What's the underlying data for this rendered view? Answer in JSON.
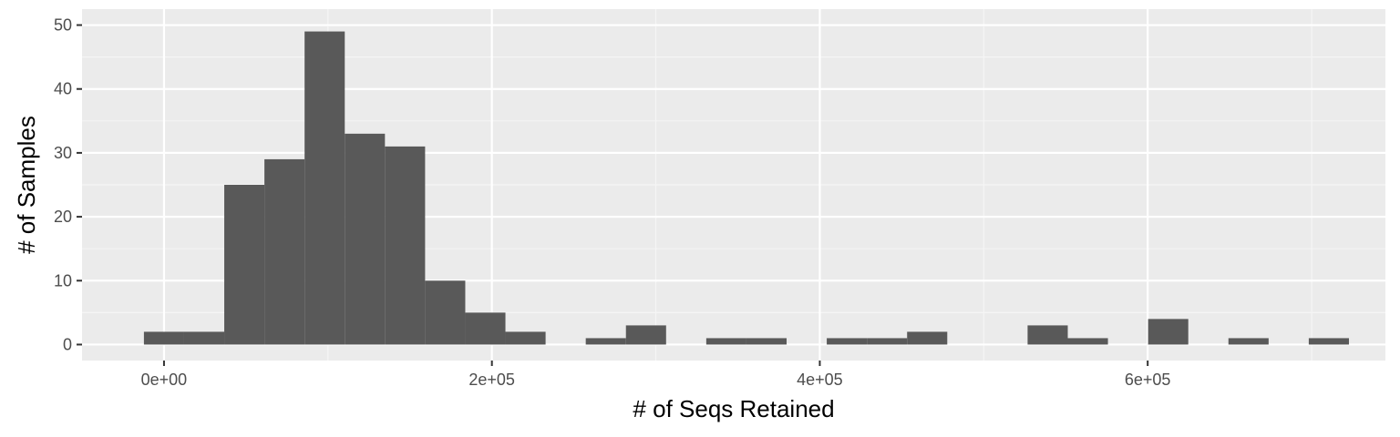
{
  "chart_data": {
    "type": "bar",
    "subtype": "histogram",
    "title": "",
    "xlabel": "# of Seqs Retained",
    "ylabel": "# of Samples",
    "x_tick_values": [
      0,
      200000,
      400000,
      600000
    ],
    "x_tick_labels": [
      "0e+00",
      "2e+05",
      "4e+05",
      "6e+05"
    ],
    "y_tick_values": [
      0,
      10,
      20,
      30,
      40,
      50
    ],
    "y_tick_labels": [
      "0",
      "10",
      "20",
      "30",
      "40",
      "50"
    ],
    "xlim": [
      -50000,
      745000
    ],
    "ylim": [
      -2.5,
      52.5
    ],
    "bin_width": 24500,
    "bins": [
      {
        "x0": -12250,
        "x1": 12250,
        "count": 2
      },
      {
        "x0": 12250,
        "x1": 36750,
        "count": 2
      },
      {
        "x0": 36750,
        "x1": 61250,
        "count": 25
      },
      {
        "x0": 61250,
        "x1": 85750,
        "count": 29
      },
      {
        "x0": 85750,
        "x1": 110250,
        "count": 49
      },
      {
        "x0": 110250,
        "x1": 134750,
        "count": 33
      },
      {
        "x0": 134750,
        "x1": 159250,
        "count": 31
      },
      {
        "x0": 159250,
        "x1": 183750,
        "count": 10
      },
      {
        "x0": 183750,
        "x1": 208250,
        "count": 5
      },
      {
        "x0": 208250,
        "x1": 232750,
        "count": 2
      },
      {
        "x0": 232750,
        "x1": 257250,
        "count": 0
      },
      {
        "x0": 257250,
        "x1": 281750,
        "count": 1
      },
      {
        "x0": 281750,
        "x1": 306250,
        "count": 3
      },
      {
        "x0": 306250,
        "x1": 330750,
        "count": 0
      },
      {
        "x0": 330750,
        "x1": 355250,
        "count": 1
      },
      {
        "x0": 355250,
        "x1": 379750,
        "count": 1
      },
      {
        "x0": 379750,
        "x1": 404250,
        "count": 0
      },
      {
        "x0": 404250,
        "x1": 428750,
        "count": 1
      },
      {
        "x0": 428750,
        "x1": 453250,
        "count": 1
      },
      {
        "x0": 453250,
        "x1": 477750,
        "count": 2
      },
      {
        "x0": 477750,
        "x1": 502250,
        "count": 0
      },
      {
        "x0": 502250,
        "x1": 526750,
        "count": 0
      },
      {
        "x0": 526750,
        "x1": 551250,
        "count": 3
      },
      {
        "x0": 551250,
        "x1": 575750,
        "count": 1
      },
      {
        "x0": 575750,
        "x1": 600250,
        "count": 0
      },
      {
        "x0": 600250,
        "x1": 624750,
        "count": 4
      },
      {
        "x0": 624750,
        "x1": 649250,
        "count": 0
      },
      {
        "x0": 649250,
        "x1": 673750,
        "count": 1
      },
      {
        "x0": 673750,
        "x1": 698250,
        "count": 0
      },
      {
        "x0": 698250,
        "x1": 722750,
        "count": 1
      }
    ],
    "grid": true,
    "legend": "none",
    "colors": {
      "panel_background": "#ebebeb",
      "grid_major": "#ffffff",
      "grid_minor": "#f5f5f5",
      "bar_fill": "#595959",
      "tick_mark": "#333333"
    }
  }
}
